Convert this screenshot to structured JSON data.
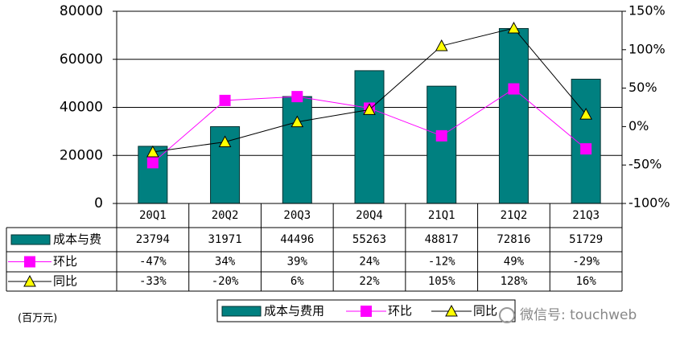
{
  "chart_data": {
    "type": "bar",
    "categories": [
      "20Q1",
      "20Q2",
      "20Q3",
      "20Q4",
      "21Q1",
      "21Q2",
      "21Q3"
    ],
    "series": [
      {
        "name": "成本与费用",
        "type": "bar",
        "color": "#008080",
        "values": [
          23794,
          31971,
          44496,
          55263,
          48817,
          72816,
          51729
        ]
      },
      {
        "name": "环比",
        "type": "line",
        "color": "#ff00ff",
        "axis": "y2",
        "marker": "square",
        "values": [
          -47,
          34,
          39,
          24,
          -12,
          49,
          -29
        ],
        "value_labels": [
          "-47%",
          "34%",
          "39%",
          "24%",
          "-12%",
          "49%",
          "-29%"
        ]
      },
      {
        "name": "同比",
        "type": "line",
        "color": "#000000",
        "marker_color": "#ffff00",
        "axis": "y2",
        "marker": "triangle",
        "values": [
          -33,
          -20,
          6,
          22,
          105,
          128,
          16
        ],
        "value_labels": [
          "-33%",
          "-20%",
          "6%",
          "22%",
          "105%",
          "128%",
          "16%"
        ]
      }
    ],
    "ylim": [
      0,
      80000
    ],
    "yticks": [
      0,
      20000,
      40000,
      60000,
      80000
    ],
    "y2lim": [
      -100,
      150
    ],
    "y2ticks": [
      {
        "value": -100,
        "label": "-100%"
      },
      {
        "value": -50,
        "label": "-50%"
      },
      {
        "value": 0,
        "label": "0%"
      },
      {
        "value": 50,
        "label": "50%"
      },
      {
        "value": 100,
        "label": "100%"
      },
      {
        "value": 150,
        "label": "150%"
      }
    ],
    "grid": true,
    "table_row_labels": [
      "成本与费",
      "环比",
      "同比"
    ],
    "unit_label": "(百万元)",
    "watermark": "微信号: touchweb"
  }
}
